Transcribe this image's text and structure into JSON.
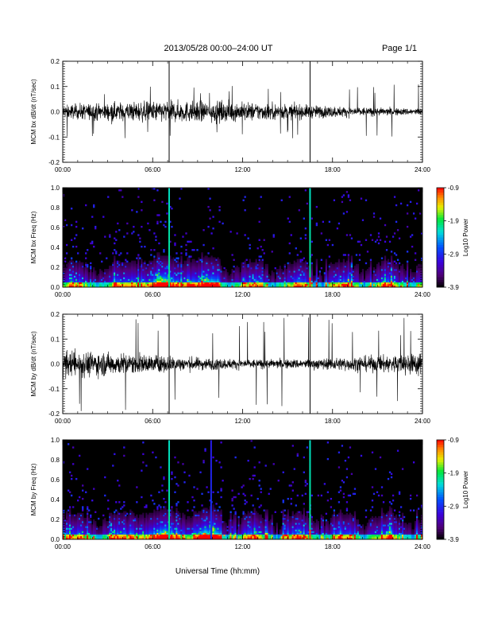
{
  "header": {
    "title": "2013/05/28  00:00–24:00 UT",
    "page": "Page 1/1"
  },
  "chart_data": [
    {
      "type": "line",
      "ylabel": "MCM bx dB/dt (nT/sec)",
      "xlabel": "",
      "x_ticks": [
        "00:00",
        "06:00",
        "12:00",
        "18:00",
        "24:00"
      ],
      "xlim_hours": [
        0,
        24
      ],
      "ylim": [
        -0.2,
        0.2
      ],
      "y_ticks": [
        "-0.2",
        "-0.1",
        "0.0",
        "0.1",
        "0.2"
      ],
      "noise_amplitude": 0.03,
      "max_excursion": 0.11,
      "event_markers_hours": [
        7.1,
        16.5
      ]
    },
    {
      "type": "heatmap",
      "ylabel": "MCM bx Freq (Hz)",
      "x_ticks": [
        "00:00",
        "06:00",
        "12:00",
        "18:00",
        "24:00"
      ],
      "xlim_hours": [
        0,
        24
      ],
      "ylim": [
        0.0,
        1.0
      ],
      "y_ticks": [
        "0.0",
        "0.2",
        "0.4",
        "0.6",
        "0.8",
        "1.0"
      ],
      "colorbar": {
        "label": "Log10 Power",
        "ticks": [
          "-0.9",
          "-1.9",
          "-2.9",
          "-3.9"
        ],
        "range": [
          -3.9,
          -0.9
        ]
      },
      "event_markers_hours": [
        7.1,
        16.5
      ]
    },
    {
      "type": "line",
      "ylabel": "MCM by dB/dt (nT/sec)",
      "x_ticks": [
        "00:00",
        "06:00",
        "12:00",
        "18:00",
        "24:00"
      ],
      "xlim_hours": [
        0,
        24
      ],
      "ylim": [
        -0.2,
        0.2
      ],
      "y_ticks": [
        "-0.2",
        "-0.1",
        "0.0",
        "0.1",
        "0.2"
      ],
      "noise_amplitude": 0.04,
      "max_excursion": 0.19,
      "event_markers_hours": [
        7.1,
        16.5
      ]
    },
    {
      "type": "heatmap",
      "ylabel": "MCM by Freq (Hz)",
      "xlabel": "Universal Time (hh:mm)",
      "x_ticks": [
        "00:00",
        "06:00",
        "12:00",
        "18:00",
        "24:00"
      ],
      "xlim_hours": [
        0,
        24
      ],
      "ylim": [
        0.0,
        1.0
      ],
      "y_ticks": [
        "0.0",
        "0.2",
        "0.4",
        "0.6",
        "0.8",
        "1.0"
      ],
      "colorbar": {
        "label": "Log10 Power",
        "ticks": [
          "-0.9",
          "-1.9",
          "-2.9",
          "-3.9"
        ],
        "range": [
          -3.9,
          -0.9
        ]
      },
      "event_markers_hours": [
        7.1,
        16.5,
        9.9
      ]
    }
  ],
  "xlabel": "Universal Time (hh:mm)"
}
